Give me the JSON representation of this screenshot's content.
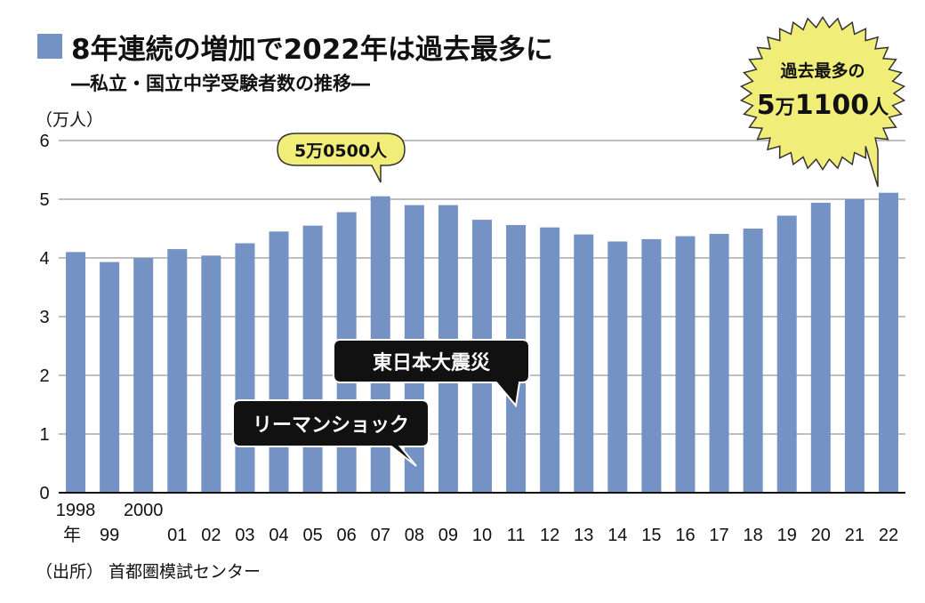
{
  "header": {
    "title": "8年連続の増加で2022年は過去最多に",
    "subtitle": "―私立・国立中学受験者数の推移―"
  },
  "unit_label": "（万人）",
  "source_label": "（出所） 首都圏模試センター",
  "x_year_suffix": "年",
  "colors": {
    "bar": "#7592c4",
    "gridline": "#999999",
    "bubble_yellow": "#f0ee79",
    "callout_dark": "#111111",
    "callout_text": "#ffffff"
  },
  "callouts": {
    "peak_2007": "5万0500人",
    "record": {
      "line1": "過去最多の",
      "line2_a": "5",
      "line2_b": "万",
      "line2_c": "1100",
      "line2_d": "人"
    },
    "lehman": "リーマンショック",
    "earthquake": "東日本大震災"
  },
  "chart_data": {
    "type": "bar",
    "categories": [
      "1998",
      "99",
      "2000",
      "01",
      "02",
      "03",
      "04",
      "05",
      "06",
      "07",
      "08",
      "09",
      "10",
      "11",
      "12",
      "13",
      "14",
      "15",
      "16",
      "17",
      "18",
      "19",
      "20",
      "21",
      "22"
    ],
    "values": [
      4.1,
      3.93,
      4.0,
      4.15,
      4.04,
      4.25,
      4.45,
      4.55,
      4.78,
      5.05,
      4.9,
      4.9,
      4.65,
      4.56,
      4.52,
      4.4,
      4.28,
      4.32,
      4.37,
      4.41,
      4.5,
      4.72,
      4.94,
      5.0,
      5.11
    ],
    "yticks": [
      "0",
      "1",
      "2",
      "3",
      "4",
      "5",
      "6"
    ],
    "ylim": [
      0,
      6
    ],
    "grid": true,
    "xlabel": "",
    "ylabel": "（万人）"
  }
}
